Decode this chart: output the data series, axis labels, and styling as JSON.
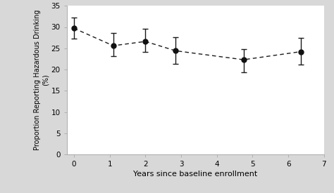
{
  "x": [
    0,
    1.1,
    2.0,
    2.85,
    4.75,
    6.35
  ],
  "y": [
    29.7,
    25.6,
    26.6,
    24.4,
    22.3,
    24.2
  ],
  "yerr_upper": [
    2.5,
    3.0,
    3.0,
    3.2,
    2.5,
    3.2
  ],
  "yerr_lower": [
    2.5,
    2.5,
    2.5,
    3.0,
    3.0,
    3.0
  ],
  "xlabel": "Years since baseline enrollment",
  "ylabel": "Proportion Reporting Hazardous Drinking\n(%)",
  "xlim": [
    -0.2,
    7
  ],
  "ylim": [
    0,
    35
  ],
  "yticks": [
    0,
    5,
    10,
    15,
    20,
    25,
    30,
    35
  ],
  "xticks": [
    0,
    1,
    2,
    3,
    4,
    5,
    6,
    7
  ],
  "line_color": "#1a1a1a",
  "marker_color": "#111111",
  "background_color": "#d8d8d8",
  "plot_bg_color": "#ffffff"
}
